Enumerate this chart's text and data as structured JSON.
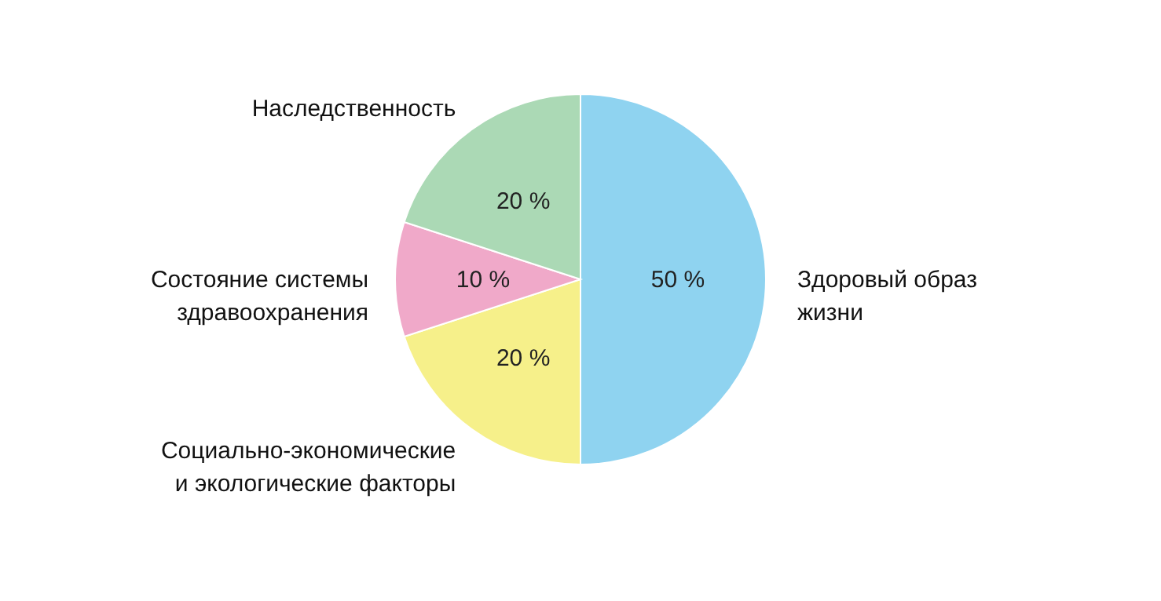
{
  "chart_data": {
    "type": "pie",
    "categories": [
      "Здоровый образ\nжизни",
      "Социально-экономические\nи экологические факторы",
      "Состояние системы\nздравоохранения",
      "Наследственность"
    ],
    "values": [
      50,
      20,
      10,
      20
    ],
    "colors": [
      "#8fd3f0",
      "#f6f08a",
      "#f0a9c9",
      "#abd9b5"
    ],
    "value_labels": [
      "50 %",
      "20 %",
      "10 %",
      "20 %"
    ]
  }
}
